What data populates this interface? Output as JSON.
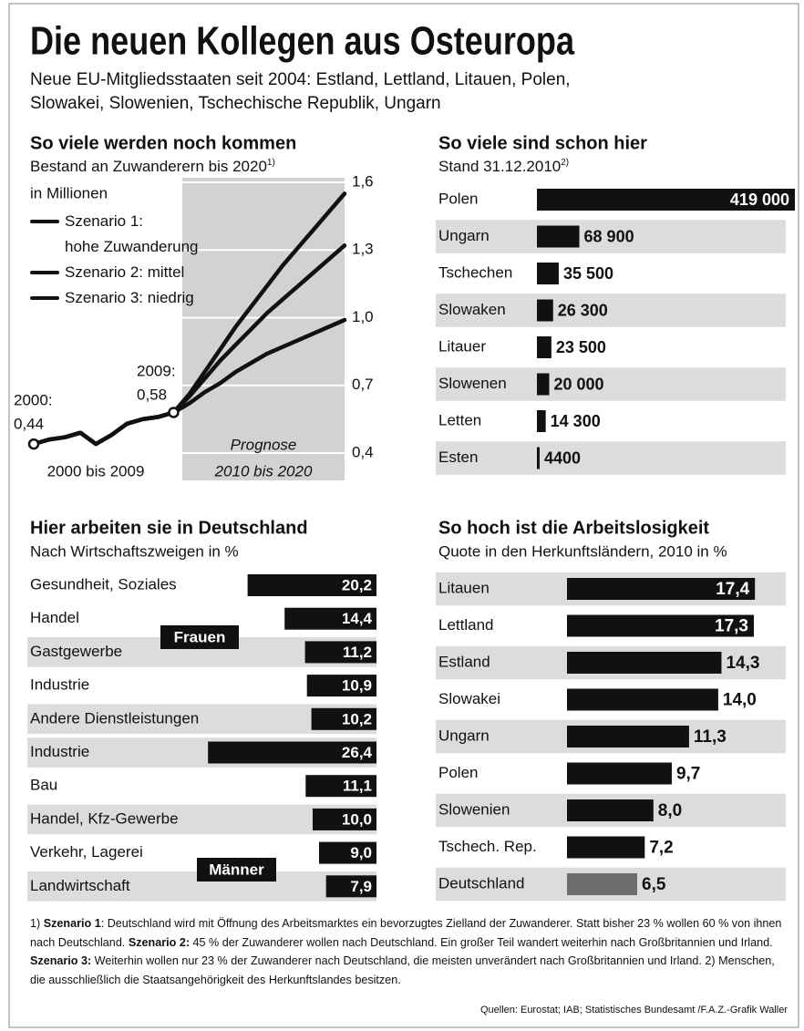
{
  "title": "Die neuen Kollegen aus Osteuropa",
  "subtitle": [
    "Neue EU-Mitgliedsstaaten seit 2004: Estland, Lettland, Litauen, Polen,",
    "Slowakei, Slowenien, Tschechische Republik, Ungarn"
  ],
  "chart_data": [
    {
      "type": "line",
      "title": "So viele werden noch kommen",
      "subtitle": "Bestand an Zuwanderern bis 2020",
      "subtitle_note": "1)",
      "unit": "in Millionen",
      "x": [
        2000,
        2001,
        2002,
        2003,
        2004,
        2005,
        2006,
        2007,
        2008,
        2009,
        2010,
        2011,
        2012,
        2013,
        2014,
        2015,
        2016,
        2017,
        2018,
        2019,
        2020
      ],
      "xlim": [
        2000,
        2020
      ],
      "series": [
        {
          "name": "Szenario 1:\nhohe Zuwanderung",
          "color": "#111111",
          "values": [
            0.44,
            0.46,
            0.47,
            0.49,
            0.44,
            0.48,
            0.53,
            0.55,
            0.56,
            0.58,
            0.66,
            0.76,
            0.86,
            0.96,
            1.05,
            1.14,
            1.23,
            1.31,
            1.39,
            1.47,
            1.55
          ]
        },
        {
          "name": "Szenario 2: mittel",
          "color": "#111111",
          "values": [
            0.44,
            0.46,
            0.47,
            0.49,
            0.44,
            0.48,
            0.53,
            0.55,
            0.56,
            0.58,
            0.65,
            0.73,
            0.81,
            0.88,
            0.95,
            1.02,
            1.08,
            1.14,
            1.2,
            1.26,
            1.32
          ]
        },
        {
          "name": "Szenario 3: niedrig",
          "color": "#111111",
          "values": [
            0.44,
            0.46,
            0.47,
            0.49,
            0.44,
            0.48,
            0.53,
            0.55,
            0.56,
            0.58,
            0.62,
            0.67,
            0.71,
            0.76,
            0.8,
            0.84,
            0.87,
            0.9,
            0.93,
            0.96,
            0.99
          ]
        }
      ],
      "ylim": [
        0.4,
        1.6
      ],
      "yticks": [
        {
          "value": 0.4,
          "label": "0,4"
        },
        {
          "value": 0.7,
          "label": "0,7"
        },
        {
          "value": 1.0,
          "label": "1,0"
        },
        {
          "value": 1.3,
          "label": "1,3"
        },
        {
          "value": 1.6,
          "label": "1,6"
        }
      ],
      "grid": true,
      "annotations": [
        "2000:",
        "0,44",
        "2009:",
        "0,58",
        "Prognose",
        "2010 bis 2020",
        "2000 bis 2009"
      ]
    },
    {
      "type": "bar",
      "orientation": "horizontal",
      "title": "So viele sind schon hier",
      "subtitle": "Stand 31.12.2010",
      "subtitle_note": "2)",
      "categories": [
        "Polen",
        "Ungarn",
        "Tschechen",
        "Slowaken",
        "Litauer",
        "Slowenen",
        "Letten",
        "Esten"
      ],
      "values": [
        419000,
        68900,
        35500,
        26300,
        23500,
        20000,
        14300,
        4400
      ],
      "value_labels": [
        "419 000",
        "68 900",
        "35 500",
        "26 300",
        "23 500",
        "20 000",
        "14 300",
        "4400"
      ],
      "xlim": [
        0,
        419000
      ],
      "color": "#111111",
      "align": "left"
    },
    {
      "type": "bar",
      "orientation": "horizontal",
      "title": "Hier arbeiten sie in Deutschland",
      "subtitle": "Nach Wirtschaftszweigen in %",
      "categories": [
        "Gesundheit, Soziales",
        "Handel",
        "Gastgewerbe",
        "Industrie",
        "Andere Dienstleistungen",
        "Industrie",
        "Bau",
        "Handel, Kfz-Gewerbe",
        "Verkehr, Lagerei",
        "Landwirtschaft"
      ],
      "values": [
        20.2,
        14.4,
        11.2,
        10.9,
        10.2,
        26.4,
        11.1,
        10.0,
        9.0,
        7.9
      ],
      "value_labels": [
        "20,2",
        "14,4",
        "11,2",
        "10,9",
        "10,2",
        "26,4",
        "11,1",
        "10,0",
        "9,0",
        "7,9"
      ],
      "xlim": [
        0,
        30
      ],
      "color": "#111111",
      "align": "right",
      "group_labels": [
        "Frauen",
        "Männer"
      ]
    },
    {
      "type": "bar",
      "orientation": "horizontal",
      "title": "So hoch ist die Arbeitslosigkeit",
      "subtitle": "Quote in den Herkunftsländern, 2010 in %",
      "categories": [
        "Litauen",
        "Lettland",
        "Estland",
        "Slowakei",
        "Ungarn",
        "Polen",
        "Slowenien",
        "Tschech. Rep.",
        "Deutschland"
      ],
      "values": [
        17.4,
        17.3,
        14.3,
        14.0,
        11.3,
        9.7,
        8.0,
        7.2,
        6.5
      ],
      "value_labels": [
        "17,4",
        "17,3",
        "14,3",
        "14,0",
        "11,3",
        "9,7",
        "8,0",
        "7,2",
        "6,5"
      ],
      "xlim": [
        0,
        20
      ],
      "colors": [
        "#111111",
        "#111111",
        "#111111",
        "#111111",
        "#111111",
        "#111111",
        "#111111",
        "#111111",
        "#6e6e6e"
      ],
      "align": "left"
    }
  ],
  "footnote": [
    {
      "text": "1) ",
      "bold": false
    },
    {
      "text": "Szenario 1",
      "bold": true
    },
    {
      "text": ": Deutschland wird mit Öffnung des Arbeitsmarktes ein bevorzugtes Zielland der Zuwanderer. Statt bisher 23 % wollen 60 % von ihnen nach Deutschland. ",
      "bold": false
    },
    {
      "text": "Szenario 2:",
      "bold": true
    },
    {
      "text": " 45 % der Zuwanderer wollen nach Deutschland. Ein großer Teil wandert weiterhin nach Großbritannien und Irland. ",
      "bold": false
    },
    {
      "text": "Szenario 3:",
      "bold": true
    },
    {
      "text": " Weiterhin wollen nur 23 % der Zuwanderer nach Deutschland, die meisten unverändert nach Großbritannien und Irland.  2) Menschen, die ausschließlich die Staatsangehörigkeit des Herkunftslandes besitzen.",
      "bold": false
    }
  ],
  "sources": "Quellen: Eurostat; IAB; Statistisches Bundesamt /F.A.Z.-Grafik Waller"
}
